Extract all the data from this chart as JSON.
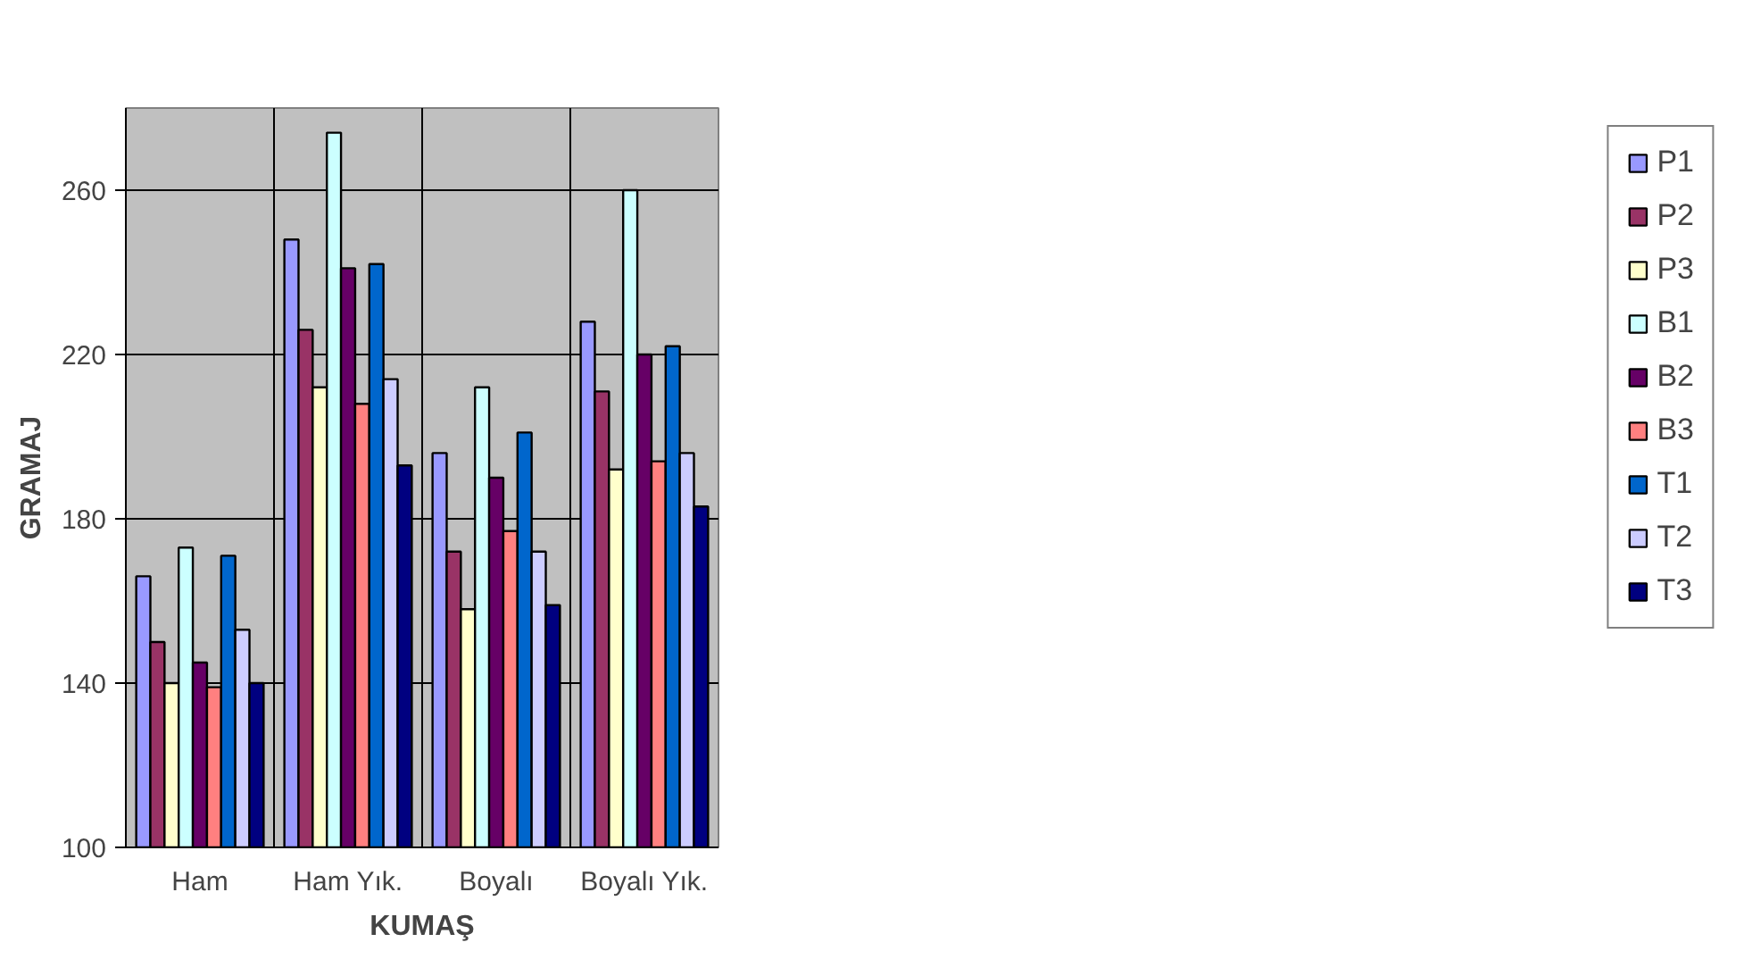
{
  "chart_data": {
    "type": "bar",
    "xlabel": "KUMAŞ",
    "ylabel": "GRAMAJ",
    "categories": [
      "Ham",
      "Ham Yık.",
      "Boyalı",
      "Boyalı Yık."
    ],
    "ylim": [
      100,
      280
    ],
    "yticks": [
      100,
      140,
      180,
      220,
      260
    ],
    "grid": true,
    "legend": "right",
    "series": [
      {
        "name": "P1",
        "color": "#9999ff",
        "values": [
          166,
          248,
          196,
          228
        ]
      },
      {
        "name": "P2",
        "color": "#993366",
        "values": [
          150,
          226,
          172,
          211
        ]
      },
      {
        "name": "P3",
        "color": "#ffffcc",
        "values": [
          140,
          212,
          158,
          192
        ]
      },
      {
        "name": "B1",
        "color": "#ccffff",
        "values": [
          173,
          274,
          212,
          260
        ]
      },
      {
        "name": "B2",
        "color": "#660066",
        "values": [
          145,
          241,
          190,
          220
        ]
      },
      {
        "name": "B3",
        "color": "#ff8080",
        "values": [
          139,
          208,
          177,
          194
        ]
      },
      {
        "name": "T1",
        "color": "#0066cc",
        "values": [
          171,
          242,
          201,
          222
        ]
      },
      {
        "name": "T2",
        "color": "#ccccff",
        "values": [
          153,
          214,
          172,
          196
        ]
      },
      {
        "name": "T3",
        "color": "#000080",
        "values": [
          140,
          193,
          159,
          183
        ]
      }
    ]
  }
}
